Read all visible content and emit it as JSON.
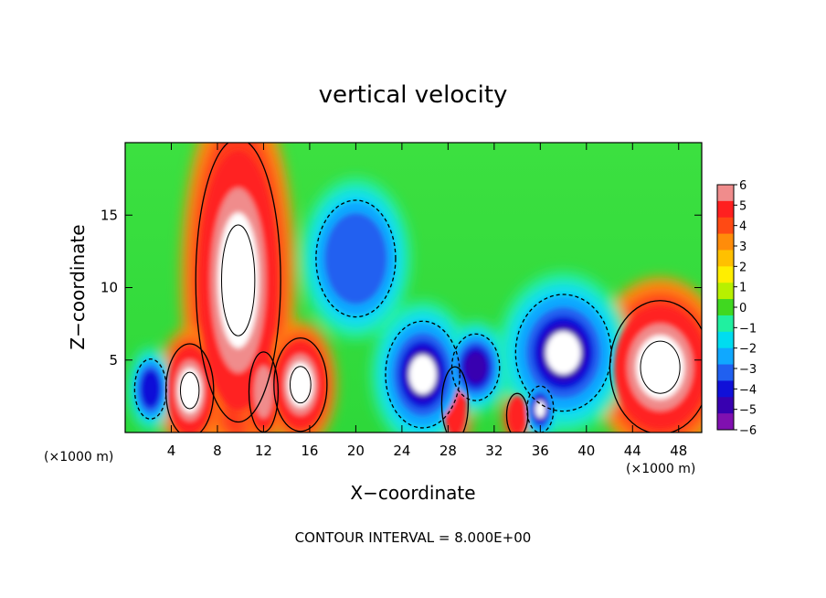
{
  "chart_data": {
    "type": "heatmap",
    "title": "vertical velocity",
    "xlabel": "X−coordinate",
    "ylabel": "Z−coordinate",
    "x_unit_left": "(×1000 m)",
    "x_unit_right": "(×1000 m)",
    "footer": "CONTOUR INTERVAL = 8.000E+00",
    "xlim": [
      0,
      50
    ],
    "ylim": [
      0,
      20
    ],
    "x_ticks": [
      4,
      8,
      12,
      16,
      20,
      24,
      28,
      32,
      36,
      40,
      44,
      48
    ],
    "y_ticks": [
      5,
      10,
      15
    ],
    "colorbar": {
      "min": -6,
      "max": 6,
      "ticks": [
        "6",
        "5",
        "4",
        "3",
        "2",
        "1",
        "0",
        "−1",
        "−2",
        "−3",
        "−4",
        "−5",
        "−6"
      ],
      "colors": [
        "#f08c8c",
        "#ff2020",
        "#ff4a14",
        "#ff8c0a",
        "#ffc000",
        "#ffee00",
        "#b8f000",
        "#40d820",
        "#20f0a0",
        "#00ddf0",
        "#10a8ff",
        "#2060f0",
        "#1010d8",
        "#3800b0",
        "#8010b0"
      ]
    },
    "features": [
      {
        "kind": "updraft",
        "x": 9.8,
        "z": 10.5,
        "rx": 3.2,
        "rz": 8.5,
        "value": 6
      },
      {
        "kind": "updraft",
        "x": 5.6,
        "z": 2.9,
        "rx": 1.8,
        "rz": 2.8,
        "value": 6
      },
      {
        "kind": "updraft",
        "x": 12.0,
        "z": 2.8,
        "rx": 1.1,
        "rz": 2.4,
        "value": 5
      },
      {
        "kind": "updraft",
        "x": 15.2,
        "z": 3.3,
        "rx": 2.0,
        "rz": 2.8,
        "value": 6
      },
      {
        "kind": "updraft",
        "x": 46.4,
        "z": 4.5,
        "rx": 3.8,
        "rz": 4.0,
        "value": 6
      },
      {
        "kind": "updraft",
        "x": 28.6,
        "z": 2.0,
        "rx": 1.0,
        "rz": 2.2,
        "value": 4
      },
      {
        "kind": "updraft",
        "x": 34.0,
        "z": 1.2,
        "rx": 0.8,
        "rz": 1.3,
        "value": 4
      },
      {
        "kind": "downdraft",
        "x": 20.0,
        "z": 12.0,
        "rx": 3.0,
        "rz": 3.5,
        "value": -3
      },
      {
        "kind": "downdraft",
        "x": 25.8,
        "z": 4.0,
        "rx": 2.8,
        "rz": 3.2,
        "value": -6
      },
      {
        "kind": "downdraft",
        "x": 30.4,
        "z": 4.5,
        "rx": 1.8,
        "rz": 2.0,
        "value": -5
      },
      {
        "kind": "downdraft",
        "x": 38.0,
        "z": 5.5,
        "rx": 3.6,
        "rz": 3.5,
        "value": -6
      },
      {
        "kind": "downdraft",
        "x": 36.0,
        "z": 1.6,
        "rx": 1.0,
        "rz": 1.4,
        "value": -6
      },
      {
        "kind": "downdraft",
        "x": 2.2,
        "z": 3.0,
        "rx": 1.2,
        "rz": 1.8,
        "value": -4
      }
    ]
  }
}
